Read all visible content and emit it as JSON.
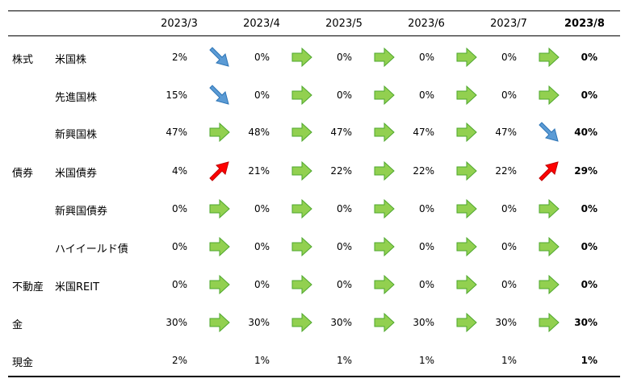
{
  "columns": [
    "2023/3",
    "2023/4",
    "2023/5",
    "2023/6",
    "2023/7",
    "2023/8"
  ],
  "rows": [
    {
      "category": "株式",
      "asset": "米国株",
      "values": [
        "2%",
        "0%",
        "0%",
        "0%",
        "0%",
        "0%"
      ],
      "arrows": [
        "down-right",
        "right",
        "right",
        "right",
        "right"
      ]
    },
    {
      "category": "",
      "asset": "先進国株",
      "values": [
        "15%",
        "0%",
        "0%",
        "0%",
        "0%",
        "0%"
      ],
      "arrows": [
        "down-right",
        "right",
        "right",
        "right",
        "right"
      ]
    },
    {
      "category": "",
      "asset": "新興国株",
      "values": [
        "47%",
        "48%",
        "47%",
        "47%",
        "47%",
        "40%"
      ],
      "arrows": [
        "right",
        "right",
        "right",
        "right",
        "down-right"
      ]
    },
    {
      "category": "債券",
      "asset": "米国債券",
      "values": [
        "4%",
        "21%",
        "22%",
        "22%",
        "22%",
        "29%"
      ],
      "arrows": [
        "up-right",
        "right",
        "right",
        "right",
        "up-right"
      ]
    },
    {
      "category": "",
      "asset": "新興国債券",
      "values": [
        "0%",
        "0%",
        "0%",
        "0%",
        "0%",
        "0%"
      ],
      "arrows": [
        "right",
        "right",
        "right",
        "right",
        "right"
      ]
    },
    {
      "category": "",
      "asset": "ハイイールド債",
      "values": [
        "0%",
        "0%",
        "0%",
        "0%",
        "0%",
        "0%"
      ],
      "arrows": [
        "right",
        "right",
        "right",
        "right",
        "right"
      ]
    },
    {
      "category": "不動産",
      "asset": "米国REIT",
      "values": [
        "0%",
        "0%",
        "0%",
        "0%",
        "0%",
        "0%"
      ],
      "arrows": [
        "right",
        "right",
        "right",
        "right",
        "right"
      ]
    },
    {
      "category": "金",
      "asset": "",
      "values": [
        "30%",
        "30%",
        "30%",
        "30%",
        "30%",
        "30%"
      ],
      "arrows": [
        "right",
        "right",
        "right",
        "right",
        "right"
      ]
    },
    {
      "category": "現金",
      "asset": "",
      "values": [
        "2%",
        "1%",
        "1%",
        "1%",
        "1%",
        "1%"
      ],
      "arrows": [
        "none",
        "none",
        "none",
        "none",
        "none"
      ]
    }
  ],
  "colors": {
    "right": "#92d050",
    "down-right": "#5b9bd5",
    "up-right": "#ff0000"
  }
}
